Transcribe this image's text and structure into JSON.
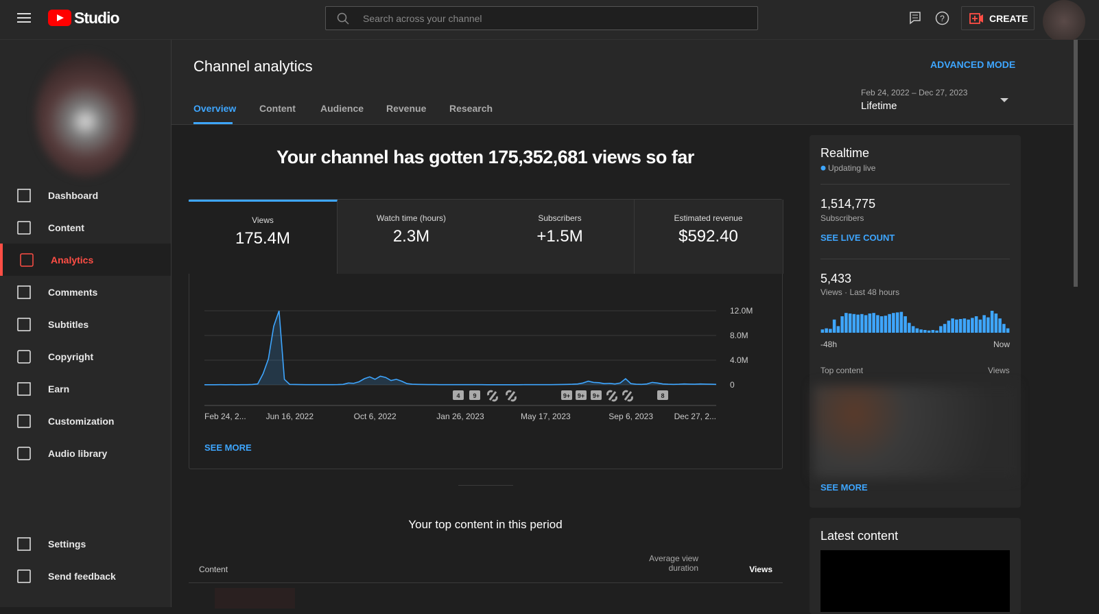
{
  "header": {
    "logo": "Studio",
    "search_placeholder": "Search across your channel",
    "create": "CREATE"
  },
  "nav": [
    "Dashboard",
    "Content",
    "Analytics",
    "Comments",
    "Subtitles",
    "Copyright",
    "Earn",
    "Customization",
    "Audio library"
  ],
  "nav_bottom": [
    "Settings",
    "Send feedback"
  ],
  "page": {
    "title": "Channel analytics",
    "advanced": "ADVANCED MODE",
    "tabs": [
      "Overview",
      "Content",
      "Audience",
      "Revenue",
      "Research"
    ],
    "date_range": "Feb 24, 2022 – Dec 27, 2023",
    "period": "Lifetime",
    "headline": "Your channel has gotten 175,352,681 views so far",
    "metrics": [
      {
        "label": "Views",
        "value": "175.4M"
      },
      {
        "label": "Watch time (hours)",
        "value": "2.3M"
      },
      {
        "label": "Subscribers",
        "value": "+1.5M"
      },
      {
        "label": "Estimated revenue",
        "value": "$592.40"
      }
    ],
    "see_more": "SEE MORE",
    "top_content_title": "Your top content in this period",
    "table_headers": [
      "Content",
      "Average view duration",
      "Views"
    ]
  },
  "realtime": {
    "title": "Realtime",
    "status": "Updating live",
    "subscribers": "1,514,775",
    "subscribers_label": "Subscribers",
    "live_count": "SEE LIVE COUNT",
    "views": "5,433",
    "views_label": "Views · Last 48 hours",
    "top_content": "Top content",
    "top_views": "Views",
    "see_more": "SEE MORE"
  },
  "latest": {
    "title": "Latest content"
  },
  "chart_data": [
    {
      "type": "line",
      "color": "#3ea6ff",
      "categories": [
        "Feb 24, 2...",
        null,
        null,
        null,
        null,
        null,
        null,
        null,
        null,
        null,
        null,
        null,
        null,
        null,
        null,
        null,
        "Jun 16, 2022",
        null,
        null,
        null,
        null,
        null,
        null,
        null,
        null,
        null,
        null,
        null,
        null,
        null,
        null,
        null,
        "Oct 6, 2022",
        null,
        null,
        null,
        null,
        null,
        null,
        null,
        null,
        null,
        null,
        null,
        null,
        null,
        null,
        null,
        "Jan 26, 2023",
        null,
        null,
        null,
        null,
        null,
        null,
        null,
        null,
        null,
        null,
        null,
        null,
        null,
        null,
        null,
        "May 17, 2023",
        null,
        null,
        null,
        null,
        null,
        null,
        null,
        null,
        null,
        null,
        null,
        null,
        null,
        null,
        null,
        "Sep 6, 2023",
        null,
        null,
        null,
        null,
        null,
        null,
        null,
        null,
        null,
        null,
        null,
        null,
        null,
        null,
        null,
        "Dec 27, 2..."
      ],
      "values": [
        20000,
        25000,
        20000,
        30000,
        25000,
        30000,
        25000,
        30000,
        40000,
        60000,
        150000,
        1800000,
        4200000,
        9500000,
        12000000,
        900000,
        80000,
        60000,
        50000,
        40000,
        40000,
        35000,
        40000,
        35000,
        40000,
        50000,
        80000,
        300000,
        250000,
        500000,
        1000000,
        1300000,
        900000,
        1400000,
        1200000,
        700000,
        900000,
        600000,
        200000,
        100000,
        80000,
        60000,
        50000,
        50000,
        40000,
        40000,
        40000,
        30000,
        30000,
        30000,
        30000,
        30000,
        30000,
        25000,
        25000,
        25000,
        25000,
        25000,
        25000,
        25000,
        30000,
        30000,
        30000,
        30000,
        40000,
        40000,
        50000,
        60000,
        80000,
        100000,
        150000,
        300000,
        600000,
        400000,
        350000,
        200000,
        250000,
        150000,
        300000,
        1000000,
        200000,
        100000,
        80000,
        150000,
        400000,
        300000,
        150000,
        100000,
        80000,
        100000,
        150000,
        120000,
        100000,
        150000,
        120000,
        100000,
        80000
      ],
      "ylim": [
        0,
        12000000
      ],
      "yticks": [
        0,
        {
          "value": 4000000,
          "label": "4.0M"
        },
        {
          "value": 8000000,
          "label": "8.0M"
        },
        {
          "value": 12000000,
          "label": "12.0M"
        }
      ],
      "grid": true,
      "badges": [
        "4",
        "9",
        "9+",
        "9+",
        "9+",
        "8"
      ]
    },
    {
      "type": "bar",
      "color": "#3ea6ff",
      "categories": [
        "-48h",
        null,
        null,
        null,
        null,
        null,
        null,
        null,
        null,
        null,
        null,
        null,
        null,
        null,
        null,
        null,
        null,
        null,
        null,
        null,
        null,
        null,
        null,
        null,
        null,
        null,
        null,
        null,
        null,
        null,
        null,
        null,
        null,
        null,
        null,
        null,
        null,
        null,
        null,
        null,
        null,
        null,
        null,
        null,
        null,
        null,
        null,
        "Now"
      ],
      "values": [
        30,
        40,
        35,
        120,
        60,
        150,
        180,
        175,
        170,
        165,
        170,
        160,
        175,
        180,
        160,
        150,
        155,
        170,
        180,
        185,
        190,
        150,
        90,
        60,
        40,
        30,
        25,
        20,
        25,
        20,
        60,
        80,
        110,
        130,
        120,
        125,
        130,
        120,
        135,
        150,
        120,
        160,
        140,
        200,
        175,
        130,
        80,
        40
      ]
    }
  ]
}
